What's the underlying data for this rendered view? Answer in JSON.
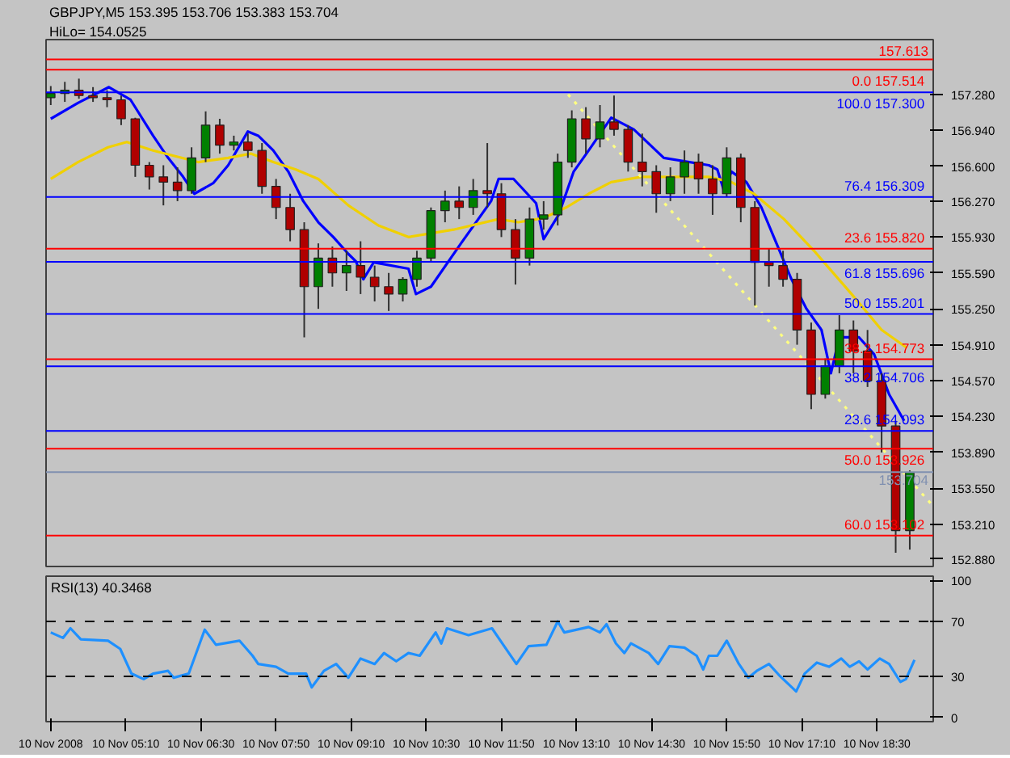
{
  "chart_data": [
    {
      "type": "candlestick",
      "title": "GBPJPY,M5  153.395 153.706 153.383 153.704",
      "annotations": [
        "HiLo= 154.0525"
      ],
      "x": [
        "2008-11-10T03:50",
        "2008-11-10T04:05",
        "2008-11-10T04:20",
        "2008-11-10T04:35",
        "2008-11-10T04:50",
        "2008-11-10T05:05",
        "2008-11-10T05:20",
        "2008-11-10T05:35",
        "2008-11-10T05:50",
        "2008-11-10T06:05",
        "2008-11-10T06:20",
        "2008-11-10T06:35",
        "2008-11-10T06:50",
        "2008-11-10T07:05",
        "2008-11-10T07:20",
        "2008-11-10T07:35",
        "2008-11-10T07:50",
        "2008-11-10T08:05",
        "2008-11-10T08:20",
        "2008-11-10T08:35",
        "2008-11-10T08:50",
        "2008-11-10T09:05",
        "2008-11-10T09:20",
        "2008-11-10T09:35",
        "2008-11-10T09:50",
        "2008-11-10T10:05",
        "2008-11-10T10:20",
        "2008-11-10T10:35",
        "2008-11-10T10:50",
        "2008-11-10T11:05",
        "2008-11-10T11:20",
        "2008-11-10T11:35",
        "2008-11-10T11:50",
        "2008-11-10T12:05",
        "2008-11-10T12:20",
        "2008-11-10T12:35",
        "2008-11-10T12:50",
        "2008-11-10T13:05",
        "2008-11-10T13:20",
        "2008-11-10T13:35",
        "2008-11-10T13:50",
        "2008-11-10T14:05",
        "2008-11-10T14:20",
        "2008-11-10T14:35",
        "2008-11-10T14:50",
        "2008-11-10T15:05",
        "2008-11-10T15:20",
        "2008-11-10T15:35",
        "2008-11-10T15:50",
        "2008-11-10T16:05",
        "2008-11-10T16:20",
        "2008-11-10T16:35",
        "2008-11-10T16:50",
        "2008-11-10T17:05",
        "2008-11-10T17:20",
        "2008-11-10T17:35",
        "2008-11-10T17:50",
        "2008-11-10T18:05",
        "2008-11-10T18:20",
        "2008-11-10T18:35",
        "2008-11-10T18:50",
        "2008-11-10T19:05"
      ],
      "ohlc": [
        [
          157.25,
          157.36,
          157.18,
          157.29
        ],
        [
          157.29,
          157.4,
          157.21,
          157.32
        ],
        [
          157.32,
          157.43,
          157.24,
          157.27
        ],
        [
          157.27,
          157.35,
          157.21,
          157.25
        ],
        [
          157.25,
          157.32,
          157.16,
          157.23
        ],
        [
          157.23,
          157.27,
          156.99,
          157.05
        ],
        [
          157.05,
          157.06,
          156.5,
          156.61
        ],
        [
          156.61,
          156.64,
          156.38,
          156.5
        ],
        [
          156.5,
          156.61,
          156.23,
          156.45
        ],
        [
          156.45,
          156.59,
          156.27,
          156.37
        ],
        [
          156.37,
          156.78,
          156.34,
          156.68
        ],
        [
          156.68,
          157.12,
          156.64,
          156.99
        ],
        [
          156.99,
          157.05,
          156.72,
          156.8
        ],
        [
          156.8,
          156.89,
          156.75,
          156.83
        ],
        [
          156.83,
          156.91,
          156.68,
          156.75
        ],
        [
          156.75,
          156.82,
          156.34,
          156.41
        ],
        [
          156.41,
          156.48,
          156.1,
          156.21
        ],
        [
          156.21,
          156.34,
          155.89,
          156.0
        ],
        [
          156.0,
          156.07,
          154.98,
          155.46
        ],
        [
          155.46,
          155.87,
          155.25,
          155.73
        ],
        [
          155.73,
          155.84,
          155.46,
          155.59
        ],
        [
          155.59,
          155.8,
          155.42,
          155.66
        ],
        [
          155.66,
          155.89,
          155.39,
          155.55
        ],
        [
          155.55,
          155.66,
          155.32,
          155.46
        ],
        [
          155.46,
          155.59,
          155.23,
          155.39
        ],
        [
          155.39,
          155.55,
          155.32,
          155.53
        ],
        [
          155.53,
          155.8,
          155.46,
          155.73
        ],
        [
          155.73,
          156.21,
          155.69,
          156.18
        ],
        [
          156.18,
          156.37,
          156.07,
          156.27
        ],
        [
          156.27,
          156.41,
          156.1,
          156.21
        ],
        [
          156.21,
          156.48,
          156.14,
          156.37
        ],
        [
          156.37,
          156.82,
          156.21,
          156.34
        ],
        [
          156.34,
          156.44,
          155.93,
          156.0
        ],
        [
          156.0,
          156.1,
          155.48,
          155.73
        ],
        [
          155.73,
          156.21,
          155.66,
          156.1
        ],
        [
          156.1,
          156.27,
          156.0,
          156.14
        ],
        [
          156.14,
          156.72,
          156.04,
          156.64
        ],
        [
          156.64,
          157.13,
          156.59,
          157.05
        ],
        [
          157.05,
          157.16,
          156.72,
          156.86
        ],
        [
          156.86,
          157.18,
          156.78,
          157.02
        ],
        [
          157.02,
          157.27,
          156.89,
          156.95
        ],
        [
          156.95,
          156.99,
          156.55,
          156.64
        ],
        [
          156.64,
          156.91,
          156.41,
          156.55
        ],
        [
          156.55,
          156.61,
          156.16,
          156.34
        ],
        [
          156.34,
          156.59,
          156.27,
          156.5
        ],
        [
          156.5,
          156.75,
          156.34,
          156.64
        ],
        [
          156.64,
          156.72,
          156.34,
          156.48
        ],
        [
          156.48,
          156.61,
          156.14,
          156.34
        ],
        [
          156.34,
          156.78,
          156.31,
          156.68
        ],
        [
          156.68,
          156.72,
          156.07,
          156.21
        ],
        [
          156.21,
          156.27,
          155.28,
          155.69
        ],
        [
          155.69,
          155.82,
          155.46,
          155.66
        ],
        [
          155.66,
          155.8,
          155.46,
          155.53
        ],
        [
          155.53,
          155.59,
          154.91,
          155.05
        ],
        [
          155.05,
          155.12,
          154.3,
          154.44
        ],
        [
          154.44,
          154.78,
          154.4,
          154.71
        ],
        [
          154.71,
          155.19,
          154.64,
          155.05
        ],
        [
          155.05,
          155.14,
          154.64,
          154.85
        ],
        [
          154.85,
          155.05,
          154.51,
          154.57
        ],
        [
          154.57,
          154.64,
          153.89,
          154.14
        ],
        [
          154.14,
          154.19,
          152.94,
          153.15
        ],
        [
          153.15,
          153.72,
          152.97,
          153.7
        ]
      ],
      "series": [
        {
          "type": "line",
          "color": "#0000ff",
          "x": [
            "2008-11-10T03:50",
            "2008-11-10T04:19",
            "2008-11-10T04:52",
            "2008-11-10T05:15",
            "2008-11-10T05:39",
            "2008-11-10T05:55",
            "2008-11-10T06:11",
            "2008-11-10T06:23",
            "2008-11-10T06:43",
            "2008-11-10T06:59",
            "2008-11-10T07:20",
            "2008-11-10T07:31",
            "2008-11-10T07:47",
            "2008-11-10T08:03",
            "2008-11-10T08:19",
            "2008-11-10T08:35",
            "2008-11-10T08:51",
            "2008-11-10T09:07",
            "2008-11-10T09:15",
            "2008-11-10T09:23",
            "2008-11-10T09:34",
            "2008-11-10T10:11",
            "2008-11-10T10:19",
            "2008-11-10T10:35",
            "2008-11-10T11:07",
            "2008-11-10T11:39",
            "2008-11-10T11:47",
            "2008-11-10T12:03",
            "2008-11-10T12:27",
            "2008-11-10T12:35",
            "2008-11-10T12:51",
            "2008-11-10T13:07",
            "2008-11-10T13:23",
            "2008-11-10T13:47",
            "2008-11-10T14:11",
            "2008-11-10T14:43",
            "2008-11-10T15:31",
            "2008-11-10T15:40",
            "2008-11-10T15:47",
            "2008-11-10T15:55",
            "2008-11-10T16:11",
            "2008-11-10T16:27",
            "2008-11-10T16:43",
            "2008-11-10T16:59",
            "2008-11-10T17:15",
            "2008-11-10T17:31",
            "2008-11-10T17:41",
            "2008-11-10T17:50",
            "2008-11-10T18:11",
            "2008-11-10T18:27",
            "2008-11-10T18:43",
            "2008-11-10T18:59"
          ],
          "values": [
            157.05,
            157.2,
            157.35,
            157.23,
            156.89,
            156.68,
            156.5,
            156.34,
            156.44,
            156.61,
            156.93,
            156.89,
            156.75,
            156.55,
            156.27,
            156.07,
            155.93,
            155.77,
            155.7,
            155.53,
            155.69,
            155.63,
            155.39,
            155.46,
            155.87,
            156.27,
            156.48,
            156.48,
            156.25,
            155.91,
            156.14,
            156.55,
            156.75,
            157.06,
            156.95,
            156.68,
            156.61,
            156.57,
            156.37,
            156.55,
            156.45,
            156.21,
            155.87,
            155.53,
            155.25,
            155.05,
            154.64,
            154.98,
            154.98,
            154.82,
            154.44,
            154.19
          ]
        },
        {
          "type": "line",
          "color": "#f0d000",
          "x": [
            "2008-11-10T03:50",
            "2008-11-10T04:19",
            "2008-11-10T04:51",
            "2008-11-10T05:11",
            "2008-11-10T05:39",
            "2008-11-10T06:27",
            "2008-11-10T06:59",
            "2008-11-10T07:23",
            "2008-11-10T07:47",
            "2008-11-10T08:11",
            "2008-11-10T08:35",
            "2008-11-10T09:07",
            "2008-11-10T09:39",
            "2008-11-10T10:11",
            "2008-11-10T10:59",
            "2008-11-10T11:47",
            "2008-11-10T12:08",
            "2008-11-10T12:35",
            "2008-11-10T12:59",
            "2008-11-10T13:23",
            "2008-11-10T13:47",
            "2008-11-10T14:19",
            "2008-11-10T15:31",
            "2008-11-10T15:55",
            "2008-11-10T16:19",
            "2008-11-10T16:51",
            "2008-11-10T17:23",
            "2008-11-10T18:03",
            "2008-11-10T18:35",
            "2008-11-10T19:02"
          ],
          "values": [
            156.48,
            156.64,
            156.78,
            156.83,
            156.75,
            156.64,
            156.68,
            156.72,
            156.64,
            156.57,
            156.48,
            156.23,
            156.04,
            155.93,
            156.0,
            156.1,
            156.07,
            156.11,
            156.21,
            156.34,
            156.45,
            156.5,
            156.5,
            156.45,
            156.34,
            156.1,
            155.8,
            155.39,
            155.05,
            154.88
          ]
        },
        {
          "type": "line",
          "color": "#ffff80",
          "line_style": "dotted",
          "x": [
            "2008-11-10T13:01",
            "2008-11-10T19:30"
          ],
          "values": [
            157.28,
            153.38
          ]
        }
      ],
      "ref_lines": [
        {
          "axis": "y",
          "value": 157.613,
          "label": "157.613",
          "color": "#ff0000"
        },
        {
          "axis": "y",
          "value": 157.514,
          "label": "0.0  157.514",
          "color": "#ff0000"
        },
        {
          "axis": "y",
          "value": 157.3,
          "label": "100.0  157.300",
          "color": "#0000ff"
        },
        {
          "axis": "y",
          "value": 156.309,
          "label": "76.4  156.309",
          "color": "#0000ff"
        },
        {
          "axis": "y",
          "value": 155.82,
          "label": "23.6  155.820",
          "color": "#ff0000"
        },
        {
          "axis": "y",
          "value": 155.696,
          "label": "61.8  155.696",
          "color": "#0000ff"
        },
        {
          "axis": "y",
          "value": 155.201,
          "label": "50.0  155.201",
          "color": "#0000ff"
        },
        {
          "axis": "y",
          "value": 154.773,
          "label": "38.2  154.773",
          "color": "#ff0000"
        },
        {
          "axis": "y",
          "value": 154.706,
          "label": "38.2  154.706",
          "color": "#0000ff"
        },
        {
          "axis": "y",
          "value": 154.093,
          "label": "23.6  154.093",
          "color": "#0000ff"
        },
        {
          "axis": "y",
          "value": 153.926,
          "label": "50.0  153.926",
          "color": "#ff0000"
        },
        {
          "axis": "y",
          "value": 153.704,
          "label": "153.704",
          "color": "#8090b0"
        },
        {
          "axis": "y",
          "value": 153.102,
          "label": "60.0  153.102",
          "color": "#ff0000"
        }
      ],
      "xlim": [
        "2008-11-10T03:45",
        "2008-11-10T19:30"
      ],
      "ylim": [
        152.81,
        157.8
      ],
      "yticks": [
        {
          "value": 157.28,
          "label": "157.280"
        },
        {
          "value": 156.94,
          "label": "156.940"
        },
        {
          "value": 156.6,
          "label": "156.600"
        },
        {
          "value": 156.27,
          "label": "156.270"
        },
        {
          "value": 155.93,
          "label": "155.930"
        },
        {
          "value": 155.59,
          "label": "155.590"
        },
        {
          "value": 155.25,
          "label": "155.250"
        },
        {
          "value": 154.91,
          "label": "154.910"
        },
        {
          "value": 154.57,
          "label": "154.570"
        },
        {
          "value": 154.23,
          "label": "154.230"
        },
        {
          "value": 153.89,
          "label": "153.890"
        },
        {
          "value": 153.55,
          "label": "153.550"
        },
        {
          "value": 153.21,
          "label": "153.210"
        },
        {
          "value": 152.88,
          "label": "152.880"
        }
      ],
      "tick_labels": "y"
    },
    {
      "type": "line",
      "title": "RSI(13) 40.3468",
      "series": [
        {
          "color": "#1e90ff",
          "x": [
            "2008-11-10T03:50",
            "2008-11-10T04:03",
            "2008-11-10T04:11",
            "2008-11-10T04:22",
            "2008-11-10T04:51",
            "2008-11-10T05:04",
            "2008-11-10T05:16",
            "2008-11-10T05:29",
            "2008-11-10T05:39",
            "2008-11-10T05:55",
            "2008-11-10T06:01",
            "2008-11-10T06:17",
            "2008-11-10T06:34",
            "2008-11-10T06:46",
            "2008-11-10T07:11",
            "2008-11-10T07:25",
            "2008-11-10T07:31",
            "2008-11-10T07:50",
            "2008-11-10T08:03",
            "2008-11-10T08:22",
            "2008-11-10T08:28",
            "2008-11-10T08:41",
            "2008-11-10T08:54",
            "2008-11-10T09:07",
            "2008-11-10T09:20",
            "2008-11-10T09:35",
            "2008-11-10T09:45",
            "2008-11-10T09:58",
            "2008-11-10T10:11",
            "2008-11-10T10:23",
            "2008-11-10T10:40",
            "2008-11-10T10:46",
            "2008-11-10T10:52",
            "2008-11-10T11:15",
            "2008-11-10T11:40",
            "2008-11-10T11:53",
            "2008-11-10T12:06",
            "2008-11-10T12:19",
            "2008-11-10T12:38",
            "2008-11-10T12:50",
            "2008-11-10T12:57",
            "2008-11-10T13:23",
            "2008-11-10T13:35",
            "2008-11-10T13:42",
            "2008-11-10T13:52",
            "2008-11-10T14:01",
            "2008-11-10T14:08",
            "2008-11-10T14:27",
            "2008-11-10T14:37",
            "2008-11-10T14:49",
            "2008-11-10T15:05",
            "2008-11-10T15:18",
            "2008-11-10T15:25",
            "2008-11-10T15:31",
            "2008-11-10T15:40",
            "2008-11-10T15:50",
            "2008-11-10T16:03",
            "2008-11-10T16:13",
            "2008-11-10T16:22",
            "2008-11-10T16:35",
            "2008-11-10T16:47",
            "2008-11-10T17:04",
            "2008-11-10T17:13",
            "2008-11-10T17:26",
            "2008-11-10T17:39",
            "2008-11-10T17:52",
            "2008-11-10T18:01",
            "2008-11-10T18:11",
            "2008-11-10T18:20",
            "2008-11-10T18:33",
            "2008-11-10T18:43",
            "2008-11-10T18:55",
            "2008-11-10T19:01",
            "2008-11-10T19:10"
          ],
          "values": [
            62,
            58,
            65,
            57,
            56,
            50,
            32,
            28,
            32,
            34,
            29,
            32,
            64,
            53,
            56,
            45,
            39,
            37,
            32,
            32,
            22,
            34,
            39,
            29,
            43,
            39,
            47,
            41,
            47,
            45,
            62,
            54,
            65,
            60,
            65,
            52,
            39,
            52,
            53,
            70,
            62,
            66,
            62,
            68,
            54,
            47,
            54,
            47,
            39,
            52,
            51,
            45,
            35,
            45,
            45,
            56,
            39,
            29,
            34,
            39,
            30,
            19,
            32,
            40,
            37,
            43,
            37,
            41,
            35,
            43,
            39,
            26,
            28,
            42
          ]
        }
      ],
      "ref_lines": [
        {
          "axis": "y",
          "value": 30,
          "color": "#000000",
          "line_style": "dashed"
        },
        {
          "axis": "y",
          "value": 70,
          "color": "#000000",
          "line_style": "dashed"
        }
      ],
      "xlim": [
        "2008-11-10T03:45",
        "2008-11-10T19:30"
      ],
      "ylim": [
        -3,
        103
      ],
      "yticks": [
        0,
        30,
        70,
        100
      ],
      "xticks": [
        {
          "value": "2008-11-10T03:50",
          "label": "10 Nov 2008"
        },
        {
          "value": "2008-11-10T05:10",
          "label": "10 Nov 05:10"
        },
        {
          "value": "2008-11-10T06:30",
          "label": "10 Nov 06:30"
        },
        {
          "value": "2008-11-10T07:50",
          "label": "10 Nov 07:50"
        },
        {
          "value": "2008-11-10T09:10",
          "label": "10 Nov 09:10"
        },
        {
          "value": "2008-11-10T10:30",
          "label": "10 Nov 10:30"
        },
        {
          "value": "2008-11-10T11:50",
          "label": "10 Nov 11:50"
        },
        {
          "value": "2008-11-10T13:10",
          "label": "10 Nov 13:10"
        },
        {
          "value": "2008-11-10T14:30",
          "label": "10 Nov 14:30"
        },
        {
          "value": "2008-11-10T15:50",
          "label": "10 Nov 15:50"
        },
        {
          "value": "2008-11-10T17:10",
          "label": "10 Nov 17:10"
        },
        {
          "value": "2008-11-10T18:30",
          "label": "10 Nov 18:30"
        }
      ]
    }
  ]
}
